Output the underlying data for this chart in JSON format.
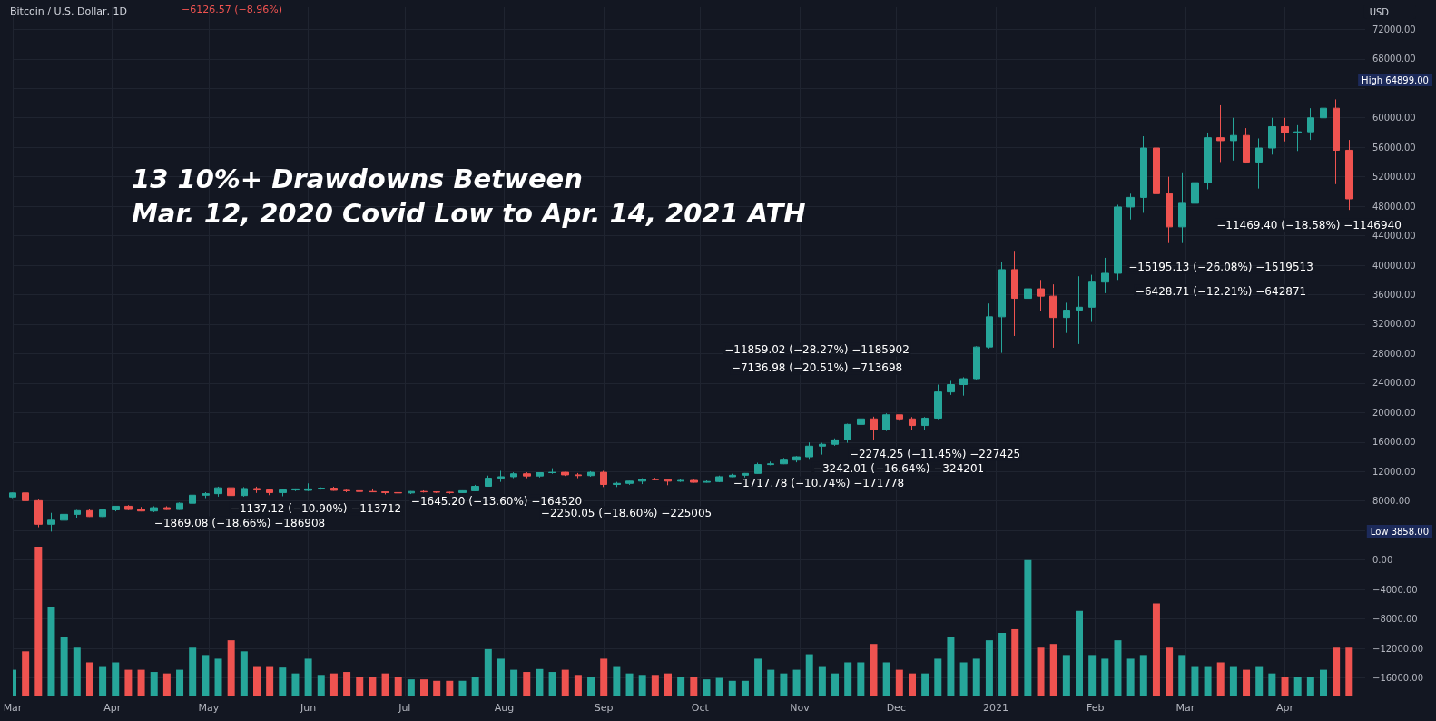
{
  "chart_data": {
    "type": "candlestick",
    "title": "Bitcoin / U.S. Dollar, 1D",
    "subtitle": "13 10%+ Drawdowns Between\nMar. 12, 2020 Covid Low to Apr. 14, 2021 ATH",
    "xlim": [
      "2020-03-01",
      "2021-04-26"
    ],
    "xticks": [
      {
        "value": "2020-03-01",
        "label": "Mar"
      },
      {
        "value": "2020-04-01",
        "label": "Apr"
      },
      {
        "value": "2020-05-01",
        "label": "May"
      },
      {
        "value": "2020-06-01",
        "label": "Jun"
      },
      {
        "value": "2020-07-01",
        "label": "Jul"
      },
      {
        "value": "2020-08-01",
        "label": "Aug"
      },
      {
        "value": "2020-09-01",
        "label": "Sep"
      },
      {
        "value": "2020-10-01",
        "label": "Oct"
      },
      {
        "value": "2020-11-01",
        "label": "Nov"
      },
      {
        "value": "2020-12-01",
        "label": "Dec"
      },
      {
        "value": "2021-01-01",
        "label": "2021"
      },
      {
        "value": "2021-02-01",
        "label": "Feb"
      },
      {
        "value": "2021-03-01",
        "label": "Mar"
      },
      {
        "value": "2021-04-01",
        "label": "Apr"
      }
    ],
    "ylim": [
      -18400,
      75000
    ],
    "yticks": [
      {
        "value": -16000,
        "label": "−16000.00"
      },
      {
        "value": -12000,
        "label": "−12000.00"
      },
      {
        "value": -8000,
        "label": "−8000.00"
      },
      {
        "value": -4000,
        "label": "−4000.00"
      },
      {
        "value": 0,
        "label": "0.00"
      },
      {
        "value": 4000,
        "label": null
      },
      {
        "value": 8000,
        "label": "8000.00"
      },
      {
        "value": 12000,
        "label": "12000.00"
      },
      {
        "value": 16000,
        "label": "16000.00"
      },
      {
        "value": 20000,
        "label": "20000.00"
      },
      {
        "value": 24000,
        "label": "24000.00"
      },
      {
        "value": 28000,
        "label": "28000.00"
      },
      {
        "value": 32000,
        "label": "32000.00"
      },
      {
        "value": 36000,
        "label": "36000.00"
      },
      {
        "value": 40000,
        "label": "40000.00"
      },
      {
        "value": 44000,
        "label": "44000.00"
      },
      {
        "value": 48000,
        "label": "48000.00"
      },
      {
        "value": 52000,
        "label": "52000.00"
      },
      {
        "value": 56000,
        "label": "56000.00"
      },
      {
        "value": 60000,
        "label": "60000.00"
      },
      {
        "value": 64000,
        "label": null
      },
      {
        "value": 68000,
        "label": "68000.00"
      },
      {
        "value": 72000,
        "label": "72000.00"
      }
    ],
    "grid": true,
    "annotations": [
      "−6126.57 (−8.96%)",
      "USD",
      "High 64899.00",
      "Low 3858.00",
      "−1869.08 (−18.66%) −186908",
      "−1137.12 (−10.90%) −113712",
      "−1645.20 (−13.60%) −164520",
      "−2250.05 (−18.60%) −225005",
      "−1717.78 (−10.74%) −171778",
      "−3242.01 (−16.64%) −324201",
      "−2274.25 (−11.45%) −227425",
      "−7136.98 (−20.51%) −713698",
      "−11859.02 (−28.27%) −1185902",
      "−15195.13 (−26.08%) −1519513",
      "−6428.71 (−12.21%) −642871",
      "−11469.40 (−18.58%) −1146940"
    ],
    "series": [
      {
        "x": [
          "2020-03-01",
          "2020-03-05",
          "2020-03-09",
          "2020-03-13",
          "2020-03-17",
          "2020-03-21",
          "2020-03-25",
          "2020-03-29",
          "2020-04-02",
          "2020-04-06",
          "2020-04-10",
          "2020-04-14",
          "2020-04-18",
          "2020-04-22",
          "2020-04-26",
          "2020-04-30",
          "2020-05-04",
          "2020-05-08",
          "2020-05-12",
          "2020-05-16",
          "2020-05-20",
          "2020-05-24",
          "2020-05-28",
          "2020-06-01",
          "2020-06-05",
          "2020-06-09",
          "2020-06-13",
          "2020-06-17",
          "2020-06-21",
          "2020-06-25",
          "2020-06-29",
          "2020-07-03",
          "2020-07-07",
          "2020-07-11",
          "2020-07-15",
          "2020-07-19",
          "2020-07-23",
          "2020-07-27",
          "2020-07-31",
          "2020-08-04",
          "2020-08-08",
          "2020-08-12",
          "2020-08-16",
          "2020-08-20",
          "2020-08-24",
          "2020-08-28",
          "2020-09-01",
          "2020-09-05",
          "2020-09-09",
          "2020-09-13",
          "2020-09-17",
          "2020-09-21",
          "2020-09-25",
          "2020-09-29",
          "2020-10-03",
          "2020-10-07",
          "2020-10-11",
          "2020-10-15",
          "2020-10-19",
          "2020-10-23",
          "2020-10-27",
          "2020-10-31",
          "2020-11-04",
          "2020-11-08",
          "2020-11-12",
          "2020-11-16",
          "2020-11-20",
          "2020-11-24",
          "2020-11-28",
          "2020-12-02",
          "2020-12-06",
          "2020-12-10",
          "2020-12-14",
          "2020-12-18",
          "2020-12-22",
          "2020-12-26",
          "2020-12-30",
          "2021-01-03",
          "2021-01-07",
          "2021-01-11",
          "2021-01-15",
          "2021-01-19",
          "2021-01-23",
          "2021-01-27",
          "2021-01-31",
          "2021-02-04",
          "2021-02-08",
          "2021-02-12",
          "2021-02-16",
          "2021-02-20",
          "2021-02-24",
          "2021-02-28",
          "2021-03-04",
          "2021-03-08",
          "2021-03-12",
          "2021-03-16",
          "2021-03-20",
          "2021-03-24",
          "2021-03-28",
          "2021-04-01",
          "2021-04-05",
          "2021-04-09",
          "2021-04-13",
          "2021-04-17",
          "2021-04-21"
        ],
        "ohlc": [
          [
            8550,
            9150,
            8400,
            9100
          ],
          [
            9100,
            9200,
            7800,
            8050
          ],
          [
            8050,
            8200,
            4450,
            4850
          ],
          [
            4850,
            6400,
            3858,
            5400
          ],
          [
            5400,
            6900,
            4900,
            6200
          ],
          [
            6200,
            6800,
            5750,
            6700
          ],
          [
            6700,
            6950,
            5850,
            5900
          ],
          [
            5900,
            6900,
            5850,
            6800
          ],
          [
            6800,
            7300,
            6600,
            7300
          ],
          [
            7300,
            7450,
            6750,
            6850
          ],
          [
            6850,
            7200,
            6600,
            6650
          ],
          [
            6650,
            7300,
            6500,
            7100
          ],
          [
            7100,
            7300,
            6800,
            6850
          ],
          [
            6850,
            7800,
            6800,
            7700
          ],
          [
            7700,
            9450,
            7650,
            8800
          ],
          [
            8800,
            9200,
            8400,
            9000
          ],
          [
            9000,
            9950,
            8600,
            9800
          ],
          [
            9800,
            10050,
            8100,
            8750
          ],
          [
            8750,
            9900,
            8600,
            9700
          ],
          [
            9700,
            9950,
            9100,
            9500
          ],
          [
            9500,
            9550,
            8800,
            9150
          ],
          [
            9150,
            9600,
            8650,
            9500
          ],
          [
            9500,
            9700,
            9350,
            9650
          ],
          [
            9450,
            10400,
            9350,
            9650
          ],
          [
            9650,
            9850,
            9550,
            9750
          ],
          [
            9750,
            9950,
            9400,
            9450
          ],
          [
            9450,
            9550,
            9200,
            9400
          ],
          [
            9400,
            9650,
            9200,
            9300
          ],
          [
            9300,
            9700,
            9200,
            9250
          ],
          [
            9250,
            9250,
            8900,
            9150
          ],
          [
            9150,
            9300,
            9000,
            9100
          ],
          [
            9100,
            9350,
            8950,
            9300
          ],
          [
            9300,
            9450,
            9150,
            9250
          ],
          [
            9250,
            9300,
            9100,
            9200
          ],
          [
            9200,
            9250,
            9000,
            9150
          ],
          [
            9150,
            9450,
            9100,
            9400
          ],
          [
            9400,
            10200,
            9350,
            10000
          ],
          [
            10000,
            11450,
            9950,
            11100
          ],
          [
            11100,
            12100,
            10600,
            11300
          ],
          [
            11300,
            11900,
            11100,
            11700
          ],
          [
            11700,
            11900,
            11100,
            11400
          ],
          [
            11400,
            11900,
            11200,
            11850
          ],
          [
            11850,
            12450,
            11700,
            11900
          ],
          [
            11900,
            11950,
            11400,
            11550
          ],
          [
            11550,
            11800,
            11100,
            11450
          ],
          [
            11450,
            12050,
            11300,
            11900
          ],
          [
            11900,
            12100,
            9900,
            10250
          ],
          [
            10250,
            10600,
            9900,
            10400
          ],
          [
            10400,
            10750,
            10200,
            10700
          ],
          [
            10700,
            11100,
            10300,
            10950
          ],
          [
            10950,
            11150,
            10800,
            10900
          ],
          [
            10900,
            10950,
            10150,
            10700
          ],
          [
            10700,
            10950,
            10600,
            10800
          ],
          [
            10800,
            10900,
            10500,
            10550
          ],
          [
            10550,
            10800,
            10500,
            10650
          ],
          [
            10650,
            11450,
            10550,
            11300
          ],
          [
            11300,
            11700,
            11250,
            11500
          ],
          [
            11500,
            11800,
            11200,
            11750
          ],
          [
            11750,
            13200,
            11700,
            12950
          ],
          [
            12950,
            13350,
            12850,
            13050
          ],
          [
            13050,
            13850,
            13000,
            13550
          ],
          [
            13550,
            14100,
            13250,
            14000
          ],
          [
            14000,
            15950,
            13600,
            15450
          ],
          [
            15450,
            15900,
            14300,
            15700
          ],
          [
            15700,
            16500,
            15500,
            16300
          ],
          [
            16300,
            18500,
            15900,
            18400
          ],
          [
            18400,
            19400,
            17700,
            19150
          ],
          [
            19150,
            19450,
            16300,
            17700
          ],
          [
            17700,
            19900,
            17500,
            19700
          ],
          [
            19700,
            19700,
            18900,
            19150
          ],
          [
            19150,
            19400,
            17600,
            18250
          ],
          [
            18250,
            19400,
            17600,
            19250
          ],
          [
            19250,
            23800,
            19100,
            22800
          ],
          [
            22800,
            24300,
            22400,
            23800
          ],
          [
            23800,
            24800,
            22300,
            24600
          ],
          [
            24600,
            29000,
            24500,
            28900
          ],
          [
            28900,
            34800,
            28700,
            33000
          ],
          [
            33000,
            40400,
            28100,
            39400
          ],
          [
            39400,
            41950,
            30400,
            35500
          ],
          [
            35500,
            40100,
            30300,
            36800
          ],
          [
            36800,
            38000,
            33800,
            35800
          ],
          [
            35800,
            37400,
            28800,
            32900
          ],
          [
            32900,
            34900,
            30800,
            33900
          ],
          [
            33900,
            38500,
            29300,
            34300
          ],
          [
            34300,
            38700,
            32300,
            37700
          ],
          [
            37700,
            41000,
            36200,
            38900
          ],
          [
            38900,
            48200,
            38000,
            47900
          ],
          [
            47900,
            49700,
            46200,
            49200
          ],
          [
            49200,
            57500,
            47100,
            55900
          ],
          [
            55900,
            58350,
            45000,
            49700
          ],
          [
            49700,
            52000,
            43000,
            45200
          ],
          [
            45200,
            52600,
            43000,
            48400
          ],
          [
            48400,
            52400,
            46300,
            51200
          ],
          [
            51200,
            58000,
            50300,
            57300
          ],
          [
            57300,
            61700,
            54000,
            56900
          ],
          [
            56900,
            60000,
            54200,
            57600
          ],
          [
            57600,
            58600,
            53800,
            54000
          ],
          [
            54000,
            57200,
            50400,
            55900
          ],
          [
            55900,
            60000,
            55000,
            58800
          ],
          [
            58800,
            60000,
            56800,
            58000
          ],
          [
            58000,
            59000,
            55500,
            58100
          ],
          [
            58100,
            61300,
            57000,
            60000
          ],
          [
            60000,
            64899,
            59900,
            61300
          ],
          [
            61300,
            62500,
            51000,
            55600
          ],
          [
            55600,
            57000,
            47500,
            49000
          ]
        ],
        "colors": [
          "#26a69a",
          "#ef5350",
          "#ef5350",
          "#26a69a",
          "#26a69a",
          "#26a69a",
          "#ef5350",
          "#26a69a",
          "#26a69a",
          "#ef5350",
          "#ef5350",
          "#26a69a",
          "#ef5350",
          "#26a69a",
          "#26a69a",
          "#26a69a",
          "#26a69a",
          "#ef5350",
          "#26a69a",
          "#ef5350",
          "#ef5350",
          "#26a69a",
          "#26a69a",
          "#26a69a",
          "#26a69a",
          "#ef5350",
          "#ef5350",
          "#ef5350",
          "#ef5350",
          "#ef5350",
          "#ef5350",
          "#26a69a",
          "#ef5350",
          "#ef5350",
          "#ef5350",
          "#26a69a",
          "#26a69a",
          "#26a69a",
          "#26a69a",
          "#26a69a",
          "#ef5350",
          "#26a69a",
          "#26a69a",
          "#ef5350",
          "#ef5350",
          "#26a69a",
          "#ef5350",
          "#26a69a",
          "#26a69a",
          "#26a69a",
          "#ef5350",
          "#ef5350",
          "#26a69a",
          "#ef5350",
          "#26a69a",
          "#26a69a",
          "#26a69a",
          "#26a69a",
          "#26a69a",
          "#26a69a",
          "#26a69a",
          "#26a69a",
          "#26a69a",
          "#26a69a",
          "#26a69a",
          "#26a69a",
          "#26a69a",
          "#ef5350",
          "#26a69a",
          "#ef5350",
          "#ef5350",
          "#26a69a",
          "#26a69a",
          "#26a69a",
          "#26a69a",
          "#26a69a",
          "#26a69a",
          "#26a69a",
          "#ef5350",
          "#26a69a",
          "#ef5350",
          "#ef5350",
          "#26a69a",
          "#26a69a",
          "#26a69a",
          "#26a69a",
          "#26a69a",
          "#26a69a",
          "#26a69a",
          "#ef5350",
          "#ef5350",
          "#26a69a",
          "#26a69a",
          "#26a69a",
          "#ef5350",
          "#26a69a",
          "#ef5350",
          "#26a69a",
          "#26a69a",
          "#ef5350",
          "#26a69a",
          "#26a69a",
          "#26a69a",
          "#ef5350",
          "#ef5350"
        ]
      },
      {
        "type": "bar",
        "x": [
          "2020-03-01",
          "2020-03-05",
          "2020-03-09",
          "2020-03-13",
          "2020-03-17",
          "2020-03-21",
          "2020-03-25",
          "2020-03-29",
          "2020-04-02",
          "2020-04-06",
          "2020-04-10",
          "2020-04-14",
          "2020-04-18",
          "2020-04-22",
          "2020-04-26",
          "2020-04-30",
          "2020-05-04",
          "2020-05-08",
          "2020-05-12",
          "2020-05-16",
          "2020-05-20",
          "2020-05-24",
          "2020-05-28",
          "2020-06-01",
          "2020-06-05",
          "2020-06-09",
          "2020-06-13",
          "2020-06-17",
          "2020-06-21",
          "2020-06-25",
          "2020-06-29",
          "2020-07-03",
          "2020-07-07",
          "2020-07-11",
          "2020-07-15",
          "2020-07-19",
          "2020-07-23",
          "2020-07-27",
          "2020-07-31",
          "2020-08-04",
          "2020-08-08",
          "2020-08-12",
          "2020-08-16",
          "2020-08-20",
          "2020-08-24",
          "2020-08-28",
          "2020-09-01",
          "2020-09-05",
          "2020-09-09",
          "2020-09-13",
          "2020-09-17",
          "2020-09-21",
          "2020-09-25",
          "2020-09-29",
          "2020-10-03",
          "2020-10-07",
          "2020-10-11",
          "2020-10-15",
          "2020-10-19",
          "2020-10-23",
          "2020-10-27",
          "2020-10-31",
          "2020-11-04",
          "2020-11-08",
          "2020-11-12",
          "2020-11-16",
          "2020-11-20",
          "2020-11-24",
          "2020-11-28",
          "2020-12-02",
          "2020-12-06",
          "2020-12-10",
          "2020-12-14",
          "2020-12-18",
          "2020-12-22",
          "2020-12-26",
          "2020-12-30",
          "2021-01-03",
          "2021-01-07",
          "2021-01-11",
          "2021-01-15",
          "2021-01-19",
          "2021-01-23",
          "2021-01-27",
          "2021-01-31",
          "2021-02-04",
          "2021-02-08",
          "2021-02-12",
          "2021-02-16",
          "2021-02-20",
          "2021-02-24",
          "2021-02-28",
          "2021-03-04",
          "2021-03-08",
          "2021-03-12",
          "2021-03-16",
          "2021-03-20",
          "2021-03-24",
          "2021-03-28",
          "2021-04-01",
          "2021-04-05",
          "2021-04-09",
          "2021-04-13",
          "2021-04-17",
          "2021-04-21"
        ],
        "values": [
          3500,
          6000,
          20200,
          12000,
          8000,
          6500,
          4500,
          4000,
          4500,
          3500,
          3500,
          3200,
          3000,
          3500,
          6500,
          5500,
          5000,
          7500,
          6000,
          4000,
          4000,
          3800,
          3000,
          5000,
          2800,
          3000,
          3200,
          2500,
          2500,
          3000,
          2500,
          2200,
          2200,
          2000,
          2000,
          2000,
          2500,
          6300,
          5000,
          3500,
          3200,
          3600,
          3200,
          3500,
          2800,
          2500,
          5000,
          4000,
          3000,
          2800,
          2800,
          3000,
          2500,
          2500,
          2200,
          2400,
          2000,
          2000,
          5000,
          3500,
          3000,
          3500,
          5600,
          4000,
          3000,
          4500,
          4500,
          7000,
          4500,
          3500,
          3000,
          3000,
          5000,
          8000,
          4500,
          5000,
          7500,
          8500,
          9000,
          18400,
          6500,
          7000,
          5500,
          11500,
          5500,
          5000,
          7500,
          5000,
          5500,
          12500,
          6500,
          5500,
          4000,
          4000,
          4500,
          4000,
          3500,
          4000,
          3000,
          2500,
          2500,
          2500,
          3500,
          6500,
          6500
        ],
        "base": [
          -18400,
          -18400,
          -18400,
          -18400,
          -18400,
          -18400,
          -18400,
          -18400,
          -18400,
          -18400,
          -18400,
          -18400,
          -18400,
          -18400,
          -18400,
          -18400,
          -18400,
          -18400,
          -18400,
          -18400,
          -18400,
          -18400,
          -18400,
          -18400,
          -18400,
          -18400,
          -18400,
          -18400,
          -18400,
          -18400,
          -18400,
          -18400,
          -18400,
          -18400,
          -18400,
          -18400,
          -18400,
          -18400,
          -18400,
          -18400,
          -18400,
          -18400,
          -18400,
          -18400,
          -18400,
          -18400,
          -18400,
          -18400,
          -18400,
          -18400,
          -18400,
          -18400,
          -18400,
          -18400,
          -18400,
          -18400,
          -18400,
          -18400,
          -18400,
          -18400,
          -18400,
          -18400,
          -18400,
          -18400,
          -18400,
          -18400,
          -18400,
          -18400,
          -18400,
          -18400,
          -18400,
          -18400,
          -18400,
          -18400,
          -18400,
          -18400,
          -18400,
          -18400,
          -18400,
          -18400,
          -18400,
          -18400,
          -18400,
          -18400,
          -18400,
          -18400,
          -18400,
          -18400,
          -18400,
          -18400,
          -18400,
          -18400,
          -18400,
          -18400,
          -18400,
          -18400,
          -18400,
          -18400,
          -18400,
          -18400,
          -18400,
          -18400,
          -18400,
          -18400,
          -18400
        ],
        "colors": [
          "#26a69a",
          "#ef5350",
          "#ef5350",
          "#26a69a",
          "#26a69a",
          "#26a69a",
          "#ef5350",
          "#26a69a",
          "#26a69a",
          "#ef5350",
          "#ef5350",
          "#26a69a",
          "#ef5350",
          "#26a69a",
          "#26a69a",
          "#26a69a",
          "#26a69a",
          "#ef5350",
          "#26a69a",
          "#ef5350",
          "#ef5350",
          "#26a69a",
          "#26a69a",
          "#26a69a",
          "#26a69a",
          "#ef5350",
          "#ef5350",
          "#ef5350",
          "#ef5350",
          "#ef5350",
          "#ef5350",
          "#26a69a",
          "#ef5350",
          "#ef5350",
          "#ef5350",
          "#26a69a",
          "#26a69a",
          "#26a69a",
          "#26a69a",
          "#26a69a",
          "#ef5350",
          "#26a69a",
          "#26a69a",
          "#ef5350",
          "#ef5350",
          "#26a69a",
          "#ef5350",
          "#26a69a",
          "#26a69a",
          "#26a69a",
          "#ef5350",
          "#ef5350",
          "#26a69a",
          "#ef5350",
          "#26a69a",
          "#26a69a",
          "#26a69a",
          "#26a69a",
          "#26a69a",
          "#26a69a",
          "#26a69a",
          "#26a69a",
          "#26a69a",
          "#26a69a",
          "#26a69a",
          "#26a69a",
          "#26a69a",
          "#ef5350",
          "#26a69a",
          "#ef5350",
          "#ef5350",
          "#26a69a",
          "#26a69a",
          "#26a69a",
          "#26a69a",
          "#26a69a",
          "#26a69a",
          "#26a69a",
          "#ef5350",
          "#26a69a",
          "#ef5350",
          "#ef5350",
          "#26a69a",
          "#26a69a",
          "#26a69a",
          "#26a69a",
          "#26a69a",
          "#26a69a",
          "#26a69a",
          "#ef5350",
          "#ef5350",
          "#26a69a",
          "#26a69a",
          "#26a69a",
          "#ef5350",
          "#26a69a",
          "#ef5350",
          "#26a69a",
          "#26a69a",
          "#ef5350",
          "#26a69a",
          "#26a69a",
          "#26a69a",
          "#ef5350",
          "#ef5350"
        ]
      }
    ]
  }
}
